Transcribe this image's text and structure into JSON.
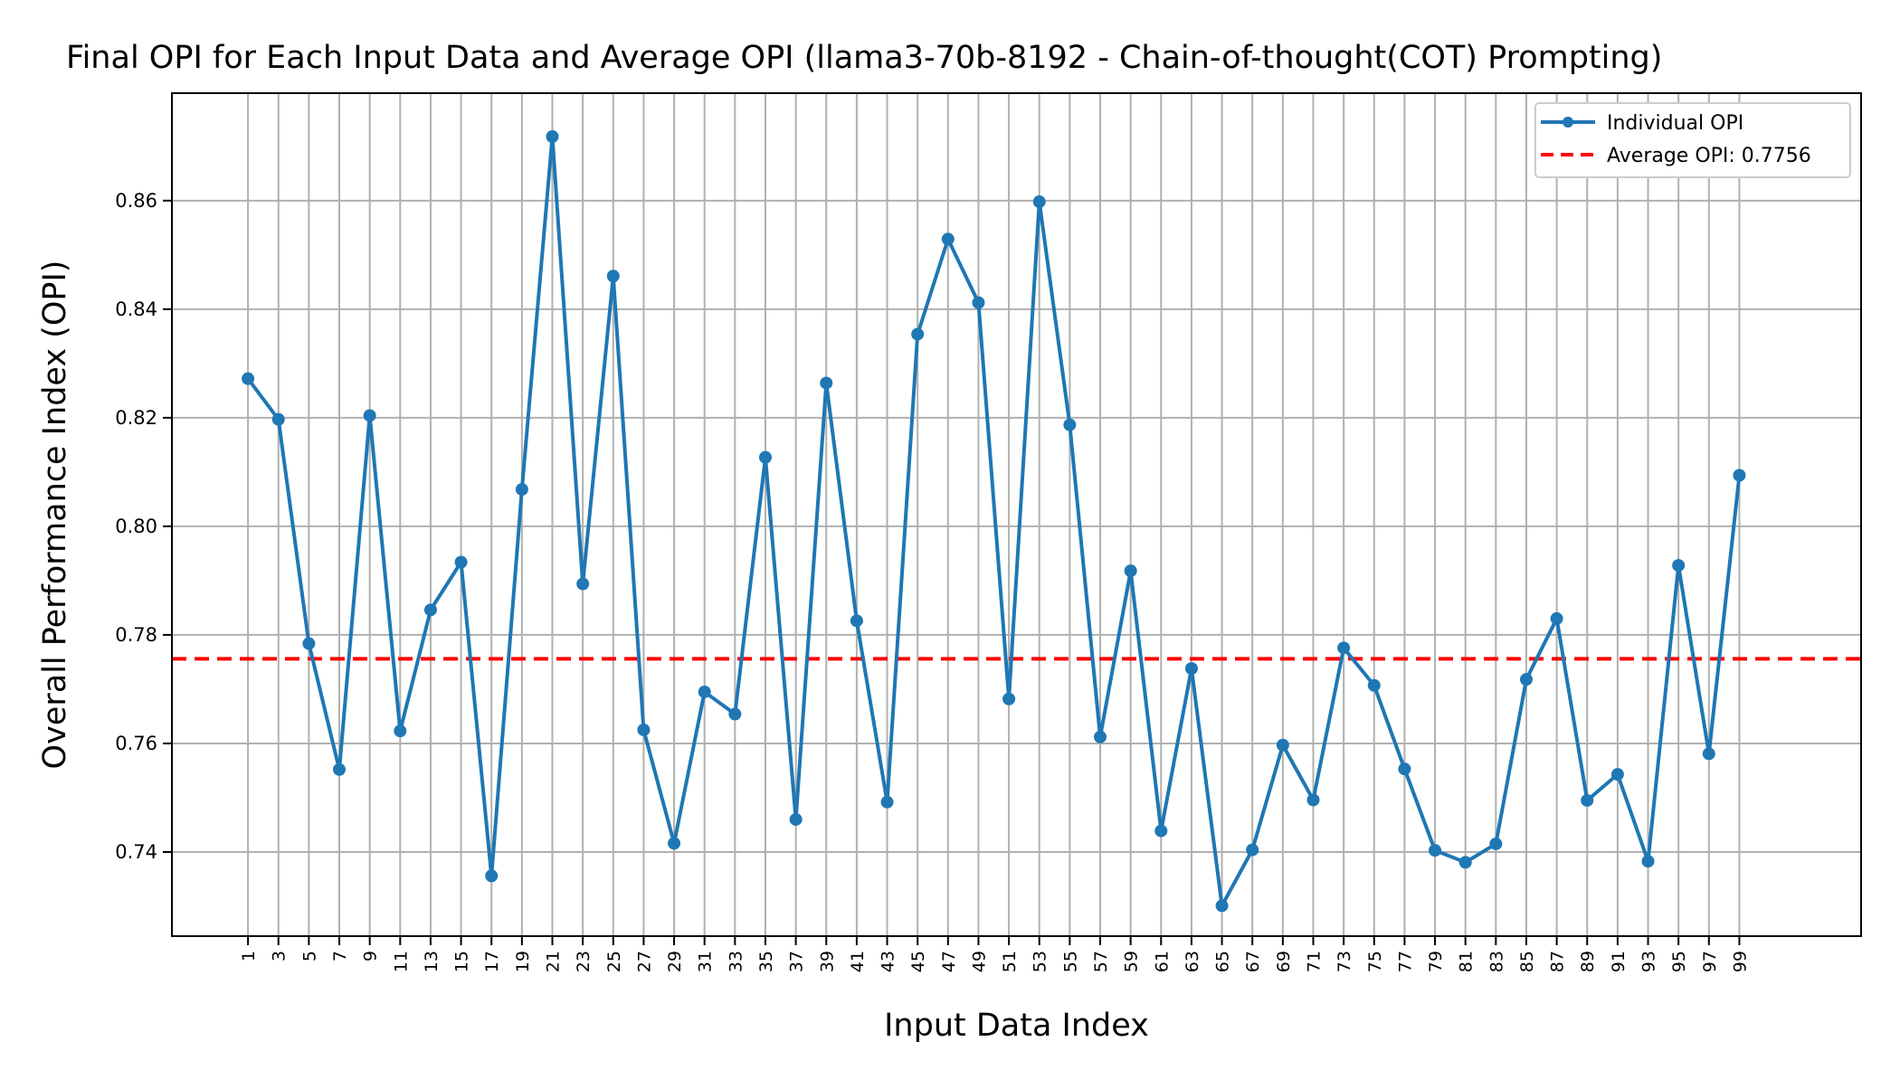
{
  "chart_data": {
    "type": "line",
    "title": "Final OPI for Each Input Data and Average OPI (llama3-70b-8192 - Chain-of-thought(COT) Prompting)",
    "xlabel": "Input Data Index",
    "ylabel": "Overall Performance Index (OPI)",
    "ylim": [
      0.7245,
      0.8798
    ],
    "xlim": [
      -4,
      107
    ],
    "grid": true,
    "legend_position": "top-right",
    "x_ticks": [
      1,
      3,
      5,
      7,
      9,
      11,
      13,
      15,
      17,
      19,
      21,
      23,
      25,
      27,
      29,
      31,
      33,
      35,
      37,
      39,
      41,
      43,
      45,
      47,
      49,
      51,
      53,
      55,
      57,
      59,
      61,
      63,
      65,
      67,
      69,
      71,
      73,
      75,
      77,
      79,
      81,
      83,
      85,
      87,
      89,
      91,
      93,
      95,
      97,
      99
    ],
    "y_ticks": [
      "0.74",
      "0.76",
      "0.78",
      "0.80",
      "0.82",
      "0.84",
      "0.86"
    ],
    "series": [
      {
        "name": "Individual OPI",
        "color": "#1f77b4",
        "style": "line-with-markers",
        "x": [
          1,
          3,
          5,
          7,
          9,
          11,
          13,
          15,
          17,
          19,
          21,
          23,
          25,
          27,
          29,
          31,
          33,
          35,
          37,
          39,
          41,
          43,
          45,
          47,
          49,
          51,
          53,
          55,
          57,
          59,
          61,
          63,
          65,
          67,
          69,
          71,
          73,
          75,
          77,
          79,
          81,
          83,
          85,
          87,
          89,
          91,
          93,
          95,
          97,
          99
        ],
        "y": [
          0.8272,
          0.8197,
          0.7784,
          0.7552,
          0.8204,
          0.7623,
          0.7846,
          0.7934,
          0.7356,
          0.8068,
          0.8718,
          0.7894,
          0.8461,
          0.7625,
          0.7416,
          0.7695,
          0.7654,
          0.8127,
          0.746,
          0.8264,
          0.7826,
          0.7492,
          0.8354,
          0.8529,
          0.8412,
          0.7682,
          0.8598,
          0.8187,
          0.7612,
          0.7918,
          0.7439,
          0.7738,
          0.7301,
          0.7404,
          0.7597,
          0.7496,
          0.7776,
          0.7707,
          0.7553,
          0.7403,
          0.7381,
          0.7415,
          0.7718,
          0.783,
          0.7495,
          0.7543,
          0.7383,
          0.7928,
          0.7581,
          0.8094
        ]
      },
      {
        "name": "Average OPI: 0.7756",
        "color": "#ff0000",
        "style": "dashed",
        "value": 0.7756
      }
    ]
  }
}
